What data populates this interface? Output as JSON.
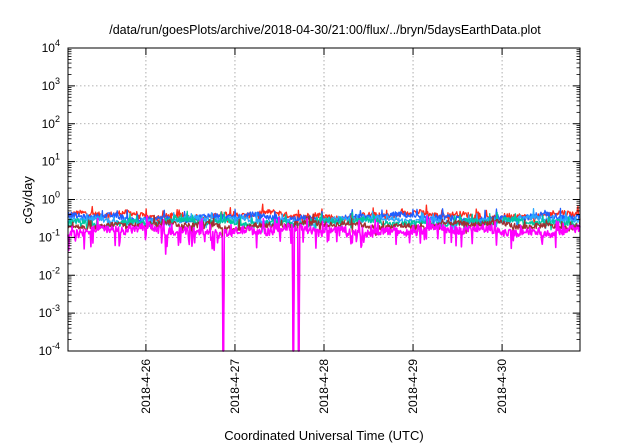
{
  "chart_data": {
    "type": "line",
    "title": "/data/run/goesPlots/archive/2018-04-30/21:00/flux/../bryn/5daysEarthData.plot",
    "xlabel": "Coordinated Universal Time (UTC)",
    "ylabel": "cGy/day",
    "xlim": [
      "2018-04-25T03:00",
      "2018-04-30T21:00"
    ],
    "ylim": [
      0.0001,
      10000
    ],
    "yscale": "log",
    "grid": true,
    "x_ticks": [
      "2018-4-26",
      "2018-4-27",
      "2018-4-28",
      "2018-4-29",
      "2018-4-30"
    ],
    "y_ticks": [
      {
        "base": "10",
        "exp": "-4",
        "value": 0.0001
      },
      {
        "base": "10",
        "exp": "-3",
        "value": 0.001
      },
      {
        "base": "10",
        "exp": "-2",
        "value": 0.01
      },
      {
        "base": "10",
        "exp": "-1",
        "value": 0.1
      },
      {
        "base": "10",
        "exp": "0",
        "value": 1
      },
      {
        "base": "10",
        "exp": "1",
        "value": 10
      },
      {
        "base": "10",
        "exp": "2",
        "value": 100
      },
      {
        "base": "10",
        "exp": "3",
        "value": 1000
      },
      {
        "base": "10",
        "exp": "4",
        "value": 10000
      }
    ],
    "series": [
      {
        "color": "#ff2a1a",
        "level": 0.38
      },
      {
        "color": "#1f5fff",
        "level": 0.33
      },
      {
        "color": "#2aa8ff",
        "level": 0.28
      },
      {
        "color": "#00c8a0",
        "level": 0.25
      },
      {
        "color": "#a03030",
        "level": 0.21
      },
      {
        "color": "#ff00ff",
        "level": 0.15
      }
    ],
    "dropouts": [
      {
        "start": "2018-04-26T20:40",
        "end": "2018-04-26T21:00"
      },
      {
        "start": "2018-04-27T15:35",
        "end": "2018-04-27T15:50"
      },
      {
        "start": "2018-04-27T17:05",
        "end": "2018-04-27T17:20"
      }
    ]
  }
}
